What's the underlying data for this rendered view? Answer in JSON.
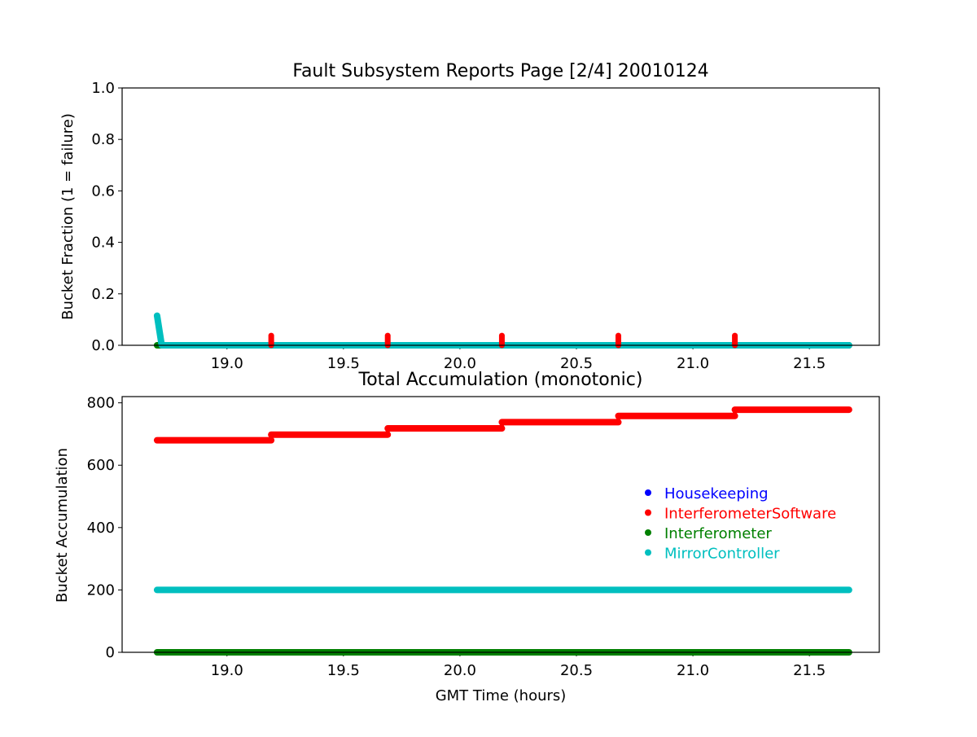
{
  "colors": {
    "Housekeeping": "#0000ff",
    "InterferometerSoftware": "#ff0000",
    "Interferometer": "#008000",
    "MirrorController": "#00bfbf"
  },
  "chart_data": [
    {
      "type": "scatter",
      "title": "Fault Subsystem Reports Page [2/4] 20010124",
      "xlabel": "",
      "ylabel": "Bucket Fraction (1 = failure)",
      "xlim": [
        18.55,
        21.8
      ],
      "ylim": [
        0.0,
        1.0
      ],
      "xticks": [
        "19.0",
        "19.5",
        "20.0",
        "20.5",
        "21.0",
        "21.5"
      ],
      "yticks": [
        "0.0",
        "0.2",
        "0.4",
        "0.6",
        "0.8",
        "1.0"
      ],
      "x_range": [
        18.7,
        21.67
      ],
      "series": [
        {
          "name": "Housekeeping",
          "segments": []
        },
        {
          "name": "Interferometer",
          "segments": [
            {
              "x": [
                18.7,
                21.67
              ],
              "y": [
                0.0,
                0.0
              ]
            }
          ]
        },
        {
          "name": "MirrorController",
          "segments": [
            {
              "x": [
                18.7,
                18.72,
                21.67
              ],
              "y": [
                0.115,
                0.0,
                0.0
              ]
            }
          ]
        },
        {
          "name": "InterferometerSoftware",
          "points": {
            "x": [
              19.19,
              19.69,
              20.18,
              20.68,
              21.18
            ],
            "y": [
              0.028,
              0.028,
              0.028,
              0.028,
              0.028
            ]
          }
        }
      ]
    },
    {
      "type": "scatter",
      "title": "Total Accumulation (monotonic)",
      "xlabel": "GMT Time (hours)",
      "ylabel": "Bucket Accumulation",
      "xlim": [
        18.55,
        21.8
      ],
      "ylim": [
        0,
        820
      ],
      "xticks": [
        "19.0",
        "19.5",
        "20.0",
        "20.5",
        "21.0",
        "21.5"
      ],
      "yticks": [
        "0",
        "200",
        "400",
        "600",
        "800"
      ],
      "series": [
        {
          "name": "InterferometerSoftware",
          "steps": [
            {
              "x": [
                18.7,
                19.19
              ],
              "y": 680
            },
            {
              "x": [
                19.19,
                19.69
              ],
              "y": 698
            },
            {
              "x": [
                19.69,
                20.18
              ],
              "y": 718
            },
            {
              "x": [
                20.18,
                20.68
              ],
              "y": 738
            },
            {
              "x": [
                20.68,
                21.18
              ],
              "y": 758
            },
            {
              "x": [
                21.18,
                21.67
              ],
              "y": 778
            }
          ]
        },
        {
          "name": "MirrorController",
          "steps": [
            {
              "x": [
                18.7,
                21.67
              ],
              "y": 200
            }
          ]
        },
        {
          "name": "Interferometer",
          "steps": [
            {
              "x": [
                18.7,
                21.67
              ],
              "y": 0
            }
          ]
        },
        {
          "name": "Housekeeping",
          "steps": []
        }
      ],
      "legend": {
        "placement": "center-right",
        "entries": [
          "Housekeeping",
          "InterferometerSoftware",
          "Interferometer",
          "MirrorController"
        ]
      }
    }
  ]
}
